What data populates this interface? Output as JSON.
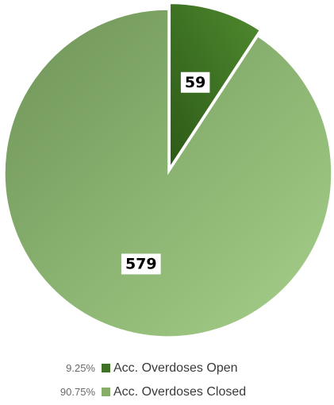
{
  "chart_data": {
    "type": "pie",
    "title": "",
    "start_angle_deg": 0,
    "exploded_slice_index": 0,
    "slices": [
      {
        "name": "Acc. Overdoses Open",
        "value": 59,
        "label": "59",
        "percent_label": "9.25%",
        "color": "#3f7224",
        "color_light": "#4f8a2f"
      },
      {
        "name": "Acc. Overdoses Closed",
        "value": 579,
        "label": "579",
        "percent_label": "90.75%",
        "color": "#86ae69",
        "color_light": "#a3cc86"
      }
    ],
    "legend_placement": "bottom"
  }
}
